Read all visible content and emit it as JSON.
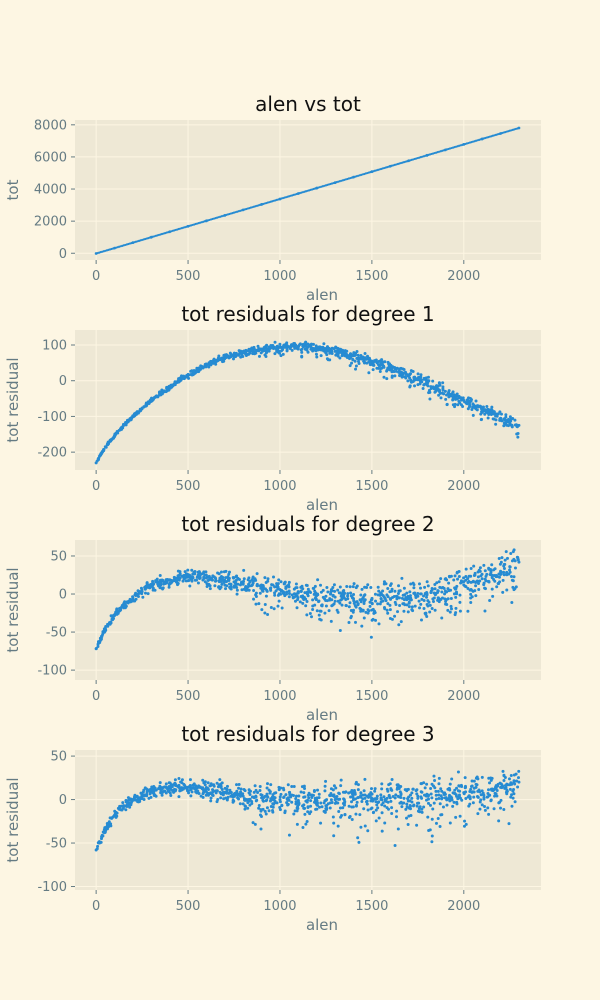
{
  "colors": {
    "figure_bg": "#fdf6e3",
    "panel_bg": "#eee8d5",
    "grid": "#fdf6e3",
    "text": "#657b83",
    "title": "#111111",
    "points": "#268bd2"
  },
  "chart_data": [
    {
      "type": "scatter",
      "title": "alen vs tot",
      "xlabel": "alen",
      "ylabel": "tot",
      "xlim": [
        -115,
        2420
      ],
      "ylim": [
        -420,
        8300
      ],
      "xticks": [
        0,
        500,
        1000,
        1500,
        2000
      ],
      "yticks": [
        0,
        2000,
        4000,
        6000,
        8000
      ],
      "grid": true,
      "series": [
        {
          "x": [
            0,
            100,
            200,
            300,
            400,
            500,
            600,
            700,
            800,
            900,
            1000,
            1100,
            1200,
            1300,
            1400,
            1500,
            1600,
            1700,
            1800,
            1900,
            2000,
            2100,
            2200,
            2300
          ],
          "y": [
            -15,
            320,
            660,
            1000,
            1340,
            1680,
            2020,
            2360,
            2700,
            3040,
            3380,
            3720,
            4060,
            4400,
            4740,
            5080,
            5420,
            5760,
            6100,
            6440,
            6780,
            7120,
            7460,
            7800
          ]
        }
      ]
    },
    {
      "type": "scatter",
      "title": "tot residuals for degree 1",
      "xlabel": "alen",
      "ylabel": "tot residual",
      "xlim": [
        -115,
        2420
      ],
      "ylim": [
        -250,
        142
      ],
      "xticks": [
        0,
        500,
        1000,
        1500,
        2000
      ],
      "yticks": [
        -200,
        -100,
        0,
        100
      ],
      "grid": true,
      "series": [
        {
          "x": [
            0,
            50,
            100,
            150,
            200,
            250,
            300,
            350,
            400,
            450,
            500,
            550,
            600,
            650,
            700,
            750,
            800,
            850,
            900,
            950,
            1000,
            1050,
            1100,
            1150,
            1200,
            1250,
            1300,
            1350,
            1400,
            1450,
            1500,
            1550,
            1600,
            1650,
            1700,
            1750,
            1800,
            1850,
            1900,
            1950,
            2000,
            2050,
            2100,
            2150,
            2200,
            2250,
            2300
          ],
          "y": [
            -230,
            -185,
            -155,
            -125,
            -100,
            -78,
            -55,
            -35,
            -18,
            0,
            15,
            30,
            45,
            55,
            65,
            72,
            78,
            84,
            88,
            92,
            94,
            95,
            95,
            93,
            90,
            87,
            82,
            77,
            70,
            62,
            55,
            45,
            35,
            25,
            15,
            5,
            -5,
            -18,
            -30,
            -42,
            -55,
            -65,
            -80,
            -90,
            -105,
            -115,
            -125
          ]
        }
      ]
    },
    {
      "type": "scatter",
      "title": "tot residuals for degree 2",
      "xlabel": "alen",
      "ylabel": "tot residual",
      "xlim": [
        -115,
        2420
      ],
      "ylim": [
        -113,
        71
      ],
      "xticks": [
        0,
        500,
        1000,
        1500,
        2000
      ],
      "yticks": [
        -100,
        -50,
        0,
        50
      ],
      "grid": true,
      "series": [
        {
          "x": [
            0,
            50,
            100,
            150,
            200,
            250,
            300,
            350,
            400,
            450,
            500,
            550,
            600,
            650,
            700,
            750,
            800,
            850,
            900,
            950,
            1000,
            1050,
            1100,
            1150,
            1200,
            1250,
            1300,
            1350,
            1400,
            1450,
            1500,
            1550,
            1600,
            1650,
            1700,
            1750,
            1800,
            1850,
            1900,
            1950,
            2000,
            2050,
            2100,
            2150,
            2200,
            2250,
            2300
          ],
          "y": [
            -72,
            -45,
            -28,
            -15,
            -5,
            3,
            10,
            15,
            18,
            20,
            22,
            22,
            21,
            20,
            18,
            16,
            14,
            12,
            10,
            8,
            6,
            4,
            2,
            0,
            -2,
            -3,
            -4,
            -5,
            -6,
            -6,
            -7,
            -6,
            -6,
            -5,
            -4,
            -3,
            -1,
            1,
            4,
            8,
            12,
            16,
            20,
            25,
            30,
            36,
            42
          ]
        }
      ]
    },
    {
      "type": "scatter",
      "title": "tot residuals for degree 3",
      "xlabel": "alen",
      "ylabel": "tot residual",
      "xlim": [
        -115,
        2420
      ],
      "ylim": [
        -104,
        57
      ],
      "xticks": [
        0,
        500,
        1000,
        1500,
        2000
      ],
      "yticks": [
        -100,
        -50,
        0,
        50
      ],
      "grid": true,
      "series": [
        {
          "x": [
            0,
            50,
            100,
            150,
            200,
            250,
            300,
            350,
            400,
            450,
            500,
            550,
            600,
            650,
            700,
            750,
            800,
            850,
            900,
            950,
            1000,
            1050,
            1100,
            1150,
            1200,
            1250,
            1300,
            1350,
            1400,
            1450,
            1500,
            1550,
            1600,
            1650,
            1700,
            1750,
            1800,
            1850,
            1900,
            1950,
            2000,
            2050,
            2100,
            2150,
            2200,
            2250,
            2300
          ],
          "y": [
            -58,
            -35,
            -18,
            -7,
            0,
            5,
            9,
            12,
            13,
            14,
            14,
            13,
            12,
            10,
            8,
            6,
            4,
            3,
            2,
            1,
            0,
            -1,
            -1,
            -1,
            -1,
            -1,
            0,
            0,
            0,
            1,
            1,
            2,
            2,
            3,
            3,
            4,
            4,
            5,
            6,
            7,
            8,
            9,
            10,
            12,
            14,
            17,
            20
          ]
        }
      ]
    }
  ]
}
